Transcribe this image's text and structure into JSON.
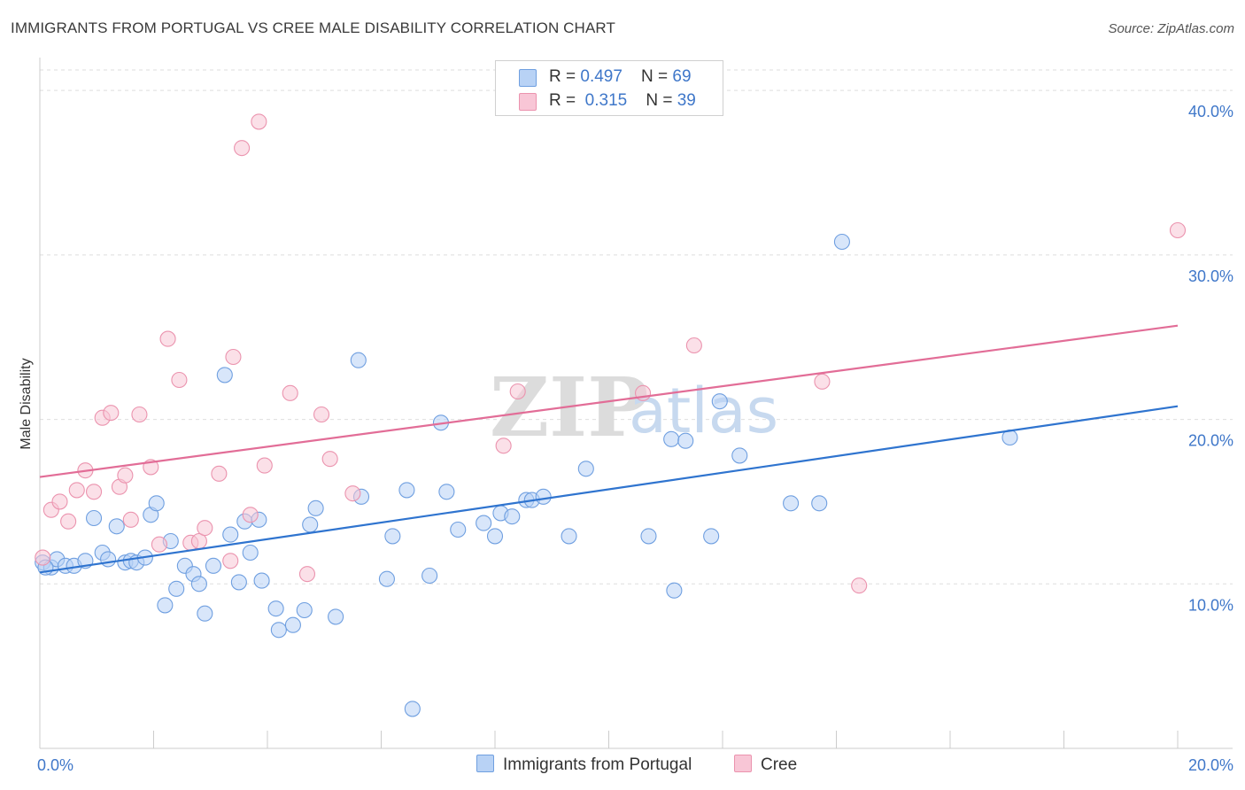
{
  "title": "IMMIGRANTS FROM PORTUGAL VS CREE MALE DISABILITY CORRELATION CHART",
  "source": "Source: ZipAtlas.com",
  "watermark": {
    "zip": "ZIP",
    "atlas": "atlas"
  },
  "legend": {
    "series1": {
      "r_label": "R = ",
      "r_value": "0.497",
      "n_label": "N = ",
      "n_value": "69"
    },
    "series2": {
      "r_label": "R = ",
      "r_value": "0.315",
      "n_label": "N = ",
      "n_value": "39"
    }
  },
  "bottom_legend": {
    "series1": "Immigrants from Portugal",
    "series2": "Cree"
  },
  "colors": {
    "blue_fill": "#b8d2f5",
    "blue_stroke": "#6f9fe0",
    "blue_line": "#2f74cf",
    "pink_fill": "#f8c6d6",
    "pink_stroke": "#eb93ae",
    "pink_line": "#e26d97",
    "tick_text": "#3f77c9"
  },
  "chart_data": {
    "type": "scatter",
    "title": "IMMIGRANTS FROM PORTUGAL VS CREE MALE DISABILITY CORRELATION CHART",
    "xlabel": "",
    "ylabel": "Male Disability",
    "xlim": [
      0,
      20
    ],
    "ylim": [
      0,
      42
    ],
    "x_tick_labels": [
      {
        "value": 0,
        "label": "0.0%"
      },
      {
        "value": 20,
        "label": "20.0%"
      }
    ],
    "y_tick_labels": [
      {
        "value": 10,
        "label": "10.0%"
      },
      {
        "value": 20,
        "label": "20.0%"
      },
      {
        "value": 30,
        "label": "30.0%"
      },
      {
        "value": 40,
        "label": "40.0%"
      }
    ],
    "series": [
      {
        "name": "Immigrants from Portugal",
        "color": "#6f9fe0",
        "trendline": {
          "x": [
            0,
            20
          ],
          "y": [
            10.7,
            20.8
          ]
        },
        "points": [
          [
            0.05,
            11.3
          ],
          [
            0.2,
            11.0
          ],
          [
            0.3,
            11.5
          ],
          [
            0.45,
            11.1
          ],
          [
            0.6,
            11.1
          ],
          [
            0.8,
            11.4
          ],
          [
            0.95,
            14.0
          ],
          [
            1.1,
            11.9
          ],
          [
            1.2,
            11.5
          ],
          [
            1.35,
            13.5
          ],
          [
            1.5,
            11.3
          ],
          [
            1.6,
            11.4
          ],
          [
            1.7,
            11.3
          ],
          [
            1.85,
            11.6
          ],
          [
            1.95,
            14.2
          ],
          [
            2.05,
            14.9
          ],
          [
            2.2,
            8.7
          ],
          [
            2.3,
            12.6
          ],
          [
            2.4,
            9.7
          ],
          [
            2.55,
            11.1
          ],
          [
            2.7,
            10.6
          ],
          [
            2.8,
            10.0
          ],
          [
            2.9,
            8.2
          ],
          [
            3.05,
            11.1
          ],
          [
            3.25,
            22.7
          ],
          [
            3.35,
            13.0
          ],
          [
            3.5,
            10.1
          ],
          [
            3.6,
            13.8
          ],
          [
            3.7,
            11.9
          ],
          [
            3.85,
            13.9
          ],
          [
            3.9,
            10.2
          ],
          [
            4.15,
            8.5
          ],
          [
            4.2,
            7.2
          ],
          [
            4.45,
            7.5
          ],
          [
            4.65,
            8.4
          ],
          [
            4.85,
            14.6
          ],
          [
            4.75,
            13.6
          ],
          [
            5.2,
            8.0
          ],
          [
            5.6,
            23.6
          ],
          [
            5.65,
            15.3
          ],
          [
            6.1,
            10.3
          ],
          [
            6.2,
            12.9
          ],
          [
            6.45,
            15.7
          ],
          [
            6.55,
            2.4
          ],
          [
            6.85,
            10.5
          ],
          [
            7.05,
            19.8
          ],
          [
            7.15,
            15.6
          ],
          [
            7.35,
            13.3
          ],
          [
            7.8,
            13.7
          ],
          [
            8.0,
            12.9
          ],
          [
            8.1,
            14.3
          ],
          [
            8.3,
            14.1
          ],
          [
            8.55,
            15.1
          ],
          [
            8.65,
            15.1
          ],
          [
            8.85,
            15.3
          ],
          [
            9.3,
            12.9
          ],
          [
            9.6,
            17.0
          ],
          [
            10.7,
            12.9
          ],
          [
            11.1,
            18.8
          ],
          [
            11.15,
            9.6
          ],
          [
            11.35,
            18.7
          ],
          [
            11.8,
            12.9
          ],
          [
            11.95,
            21.1
          ],
          [
            12.3,
            17.8
          ],
          [
            13.2,
            14.9
          ],
          [
            13.7,
            14.9
          ],
          [
            14.1,
            30.8
          ],
          [
            17.05,
            18.9
          ],
          [
            0.1,
            11.0
          ]
        ]
      },
      {
        "name": "Cree",
        "color": "#eb93ae",
        "trendline": {
          "x": [
            0,
            20
          ],
          "y": [
            16.5,
            25.7
          ]
        },
        "points": [
          [
            0.05,
            11.6
          ],
          [
            0.2,
            14.5
          ],
          [
            0.35,
            15.0
          ],
          [
            0.5,
            13.8
          ],
          [
            0.65,
            15.7
          ],
          [
            0.8,
            16.9
          ],
          [
            0.95,
            15.6
          ],
          [
            1.1,
            20.1
          ],
          [
            1.25,
            20.4
          ],
          [
            1.4,
            15.9
          ],
          [
            1.5,
            16.6
          ],
          [
            1.6,
            13.9
          ],
          [
            1.75,
            20.3
          ],
          [
            1.95,
            17.1
          ],
          [
            2.1,
            12.4
          ],
          [
            2.25,
            24.9
          ],
          [
            2.45,
            22.4
          ],
          [
            2.65,
            12.5
          ],
          [
            2.8,
            12.6
          ],
          [
            2.9,
            13.4
          ],
          [
            3.15,
            16.7
          ],
          [
            3.35,
            11.4
          ],
          [
            3.4,
            23.8
          ],
          [
            3.55,
            36.5
          ],
          [
            3.7,
            14.2
          ],
          [
            3.85,
            38.1
          ],
          [
            3.95,
            17.2
          ],
          [
            4.4,
            21.6
          ],
          [
            4.7,
            10.6
          ],
          [
            4.95,
            20.3
          ],
          [
            5.1,
            17.6
          ],
          [
            5.5,
            15.5
          ],
          [
            8.15,
            18.4
          ],
          [
            8.4,
            21.7
          ],
          [
            10.6,
            21.6
          ],
          [
            11.5,
            24.5
          ],
          [
            13.75,
            22.3
          ],
          [
            14.4,
            9.9
          ],
          [
            20.0,
            31.5
          ]
        ]
      }
    ]
  }
}
